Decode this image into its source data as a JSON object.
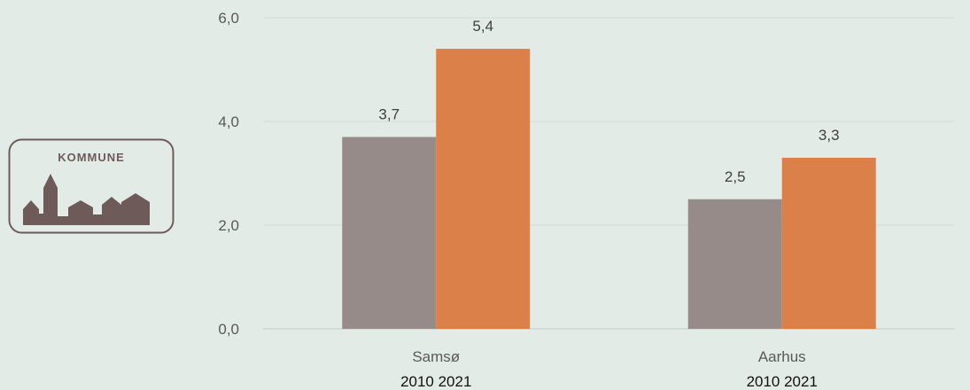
{
  "logo": {
    "text": "KOMMUNE",
    "icon": "town-skyline-icon",
    "color": "#6e5b59"
  },
  "chart_data": {
    "type": "bar",
    "categories": [
      "Samsø",
      "Aarhus"
    ],
    "category_sublabel": "2010  2021",
    "series": [
      {
        "year": "2010",
        "values": [
          3.7,
          2.5
        ],
        "labels": [
          "3,7",
          "2,5"
        ],
        "color": "#968b88"
      },
      {
        "year": "2021",
        "values": [
          5.4,
          3.3
        ],
        "labels": [
          "5,4",
          "3,3"
        ],
        "color": "#db8049"
      }
    ],
    "ylim": [
      0,
      6
    ],
    "yticks": [
      0,
      2,
      4,
      6
    ],
    "ytick_labels": [
      "0,0",
      "2,0",
      "4,0",
      "6,0"
    ],
    "grid": true,
    "title": "",
    "xlabel": "",
    "ylabel": ""
  }
}
